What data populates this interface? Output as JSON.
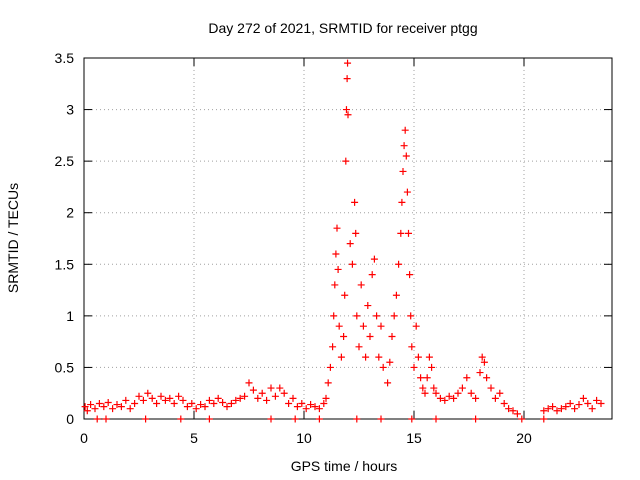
{
  "chart_data": {
    "type": "scatter",
    "title": "Day 272 of 2021, SRMTID for receiver ptgg",
    "xlabel": "GPS time / hours",
    "ylabel": "SRMTID / TECUs",
    "xlim": [
      0,
      24
    ],
    "ylim": [
      0,
      3.5
    ],
    "x_ticks": [
      0,
      5,
      10,
      15,
      20
    ],
    "y_ticks": [
      0,
      0.5,
      1,
      1.5,
      2,
      2.5,
      3,
      3.5
    ],
    "x_tick_labels": [
      "0",
      "5",
      "10",
      "15",
      "20"
    ],
    "y_tick_labels": [
      "0",
      "0.5",
      "1",
      "1.5",
      "2",
      "2.5",
      "3",
      "3.5"
    ],
    "grid": true,
    "marker": "+",
    "marker_color": "#ff0000",
    "series": [
      {
        "name": "SRMTID",
        "points": [
          [
            0.05,
            0.12
          ],
          [
            0.15,
            0.08
          ],
          [
            0.3,
            0.14
          ],
          [
            0.5,
            0.1
          ],
          [
            0.7,
            0.15
          ],
          [
            0.9,
            0.12
          ],
          [
            1.1,
            0.16
          ],
          [
            1.3,
            0.1
          ],
          [
            1.5,
            0.14
          ],
          [
            1.7,
            0.12
          ],
          [
            1.9,
            0.18
          ],
          [
            2.1,
            0.1
          ],
          [
            2.3,
            0.15
          ],
          [
            2.5,
            0.22
          ],
          [
            2.7,
            0.18
          ],
          [
            2.9,
            0.25
          ],
          [
            3.1,
            0.2
          ],
          [
            3.3,
            0.15
          ],
          [
            3.5,
            0.22
          ],
          [
            3.7,
            0.18
          ],
          [
            3.9,
            0.2
          ],
          [
            4.1,
            0.15
          ],
          [
            4.3,
            0.22
          ],
          [
            4.5,
            0.18
          ],
          [
            4.7,
            0.12
          ],
          [
            4.9,
            0.15
          ],
          [
            5.1,
            0.1
          ],
          [
            5.3,
            0.14
          ],
          [
            5.5,
            0.12
          ],
          [
            5.7,
            0.18
          ],
          [
            5.9,
            0.15
          ],
          [
            6.1,
            0.2
          ],
          [
            6.3,
            0.16
          ],
          [
            6.5,
            0.12
          ],
          [
            6.7,
            0.15
          ],
          [
            6.9,
            0.18
          ],
          [
            7.1,
            0.2
          ],
          [
            7.3,
            0.22
          ],
          [
            7.5,
            0.35
          ],
          [
            7.7,
            0.28
          ],
          [
            7.9,
            0.2
          ],
          [
            8.1,
            0.25
          ],
          [
            8.3,
            0.18
          ],
          [
            8.5,
            0.3
          ],
          [
            8.7,
            0.22
          ],
          [
            8.9,
            0.3
          ],
          [
            9.1,
            0.25
          ],
          [
            9.3,
            0.15
          ],
          [
            9.5,
            0.2
          ],
          [
            9.7,
            0.12
          ],
          [
            9.9,
            0.15
          ],
          [
            10.1,
            0.1
          ],
          [
            10.3,
            0.14
          ],
          [
            10.5,
            0.12
          ],
          [
            10.7,
            0.1
          ],
          [
            10.9,
            0.15
          ],
          [
            11.0,
            0.2
          ],
          [
            11.1,
            0.35
          ],
          [
            11.2,
            0.5
          ],
          [
            11.3,
            0.7
          ],
          [
            11.35,
            1.0
          ],
          [
            11.4,
            1.3
          ],
          [
            11.45,
            1.6
          ],
          [
            11.5,
            1.85
          ],
          [
            11.55,
            1.45
          ],
          [
            11.6,
            0.9
          ],
          [
            11.7,
            0.6
          ],
          [
            11.8,
            0.8
          ],
          [
            11.85,
            1.2
          ],
          [
            11.9,
            2.5
          ],
          [
            11.93,
            3.0
          ],
          [
            11.96,
            3.3
          ],
          [
            11.98,
            3.45
          ],
          [
            12.0,
            2.95
          ],
          [
            12.1,
            1.7
          ],
          [
            12.2,
            1.5
          ],
          [
            12.3,
            2.1
          ],
          [
            12.35,
            1.8
          ],
          [
            12.4,
            1.0
          ],
          [
            12.5,
            0.7
          ],
          [
            12.6,
            1.3
          ],
          [
            12.7,
            0.9
          ],
          [
            12.8,
            0.6
          ],
          [
            12.9,
            1.1
          ],
          [
            13.0,
            0.8
          ],
          [
            13.1,
            1.4
          ],
          [
            13.2,
            1.55
          ],
          [
            13.3,
            1.0
          ],
          [
            13.4,
            0.6
          ],
          [
            13.5,
            0.9
          ],
          [
            13.6,
            0.5
          ],
          [
            13.8,
            0.35
          ],
          [
            13.9,
            0.55
          ],
          [
            14.0,
            0.8
          ],
          [
            14.1,
            1.0
          ],
          [
            14.2,
            1.2
          ],
          [
            14.3,
            1.5
          ],
          [
            14.4,
            1.8
          ],
          [
            14.45,
            2.1
          ],
          [
            14.5,
            2.4
          ],
          [
            14.55,
            2.65
          ],
          [
            14.6,
            2.8
          ],
          [
            14.65,
            2.55
          ],
          [
            14.7,
            2.2
          ],
          [
            14.75,
            1.8
          ],
          [
            14.8,
            1.4
          ],
          [
            14.85,
            1.0
          ],
          [
            14.9,
            0.7
          ],
          [
            15.0,
            0.5
          ],
          [
            15.1,
            0.9
          ],
          [
            15.2,
            0.6
          ],
          [
            15.3,
            0.4
          ],
          [
            15.4,
            0.3
          ],
          [
            15.5,
            0.25
          ],
          [
            15.6,
            0.4
          ],
          [
            15.7,
            0.6
          ],
          [
            15.8,
            0.5
          ],
          [
            15.9,
            0.3
          ],
          [
            16.0,
            0.25
          ],
          [
            16.2,
            0.2
          ],
          [
            16.4,
            0.18
          ],
          [
            16.6,
            0.22
          ],
          [
            16.8,
            0.2
          ],
          [
            17.0,
            0.25
          ],
          [
            17.2,
            0.3
          ],
          [
            17.4,
            0.4
          ],
          [
            17.6,
            0.25
          ],
          [
            17.8,
            0.2
          ],
          [
            18.0,
            0.45
          ],
          [
            18.1,
            0.6
          ],
          [
            18.2,
            0.55
          ],
          [
            18.3,
            0.4
          ],
          [
            18.5,
            0.3
          ],
          [
            18.7,
            0.2
          ],
          [
            18.9,
            0.25
          ],
          [
            19.1,
            0.15
          ],
          [
            19.3,
            0.1
          ],
          [
            19.5,
            0.08
          ],
          [
            19.7,
            0.05
          ],
          [
            20.9,
            0.08
          ],
          [
            21.1,
            0.1
          ],
          [
            21.3,
            0.12
          ],
          [
            21.5,
            0.08
          ],
          [
            21.7,
            0.1
          ],
          [
            21.9,
            0.12
          ],
          [
            22.1,
            0.15
          ],
          [
            22.3,
            0.1
          ],
          [
            22.5,
            0.14
          ],
          [
            22.7,
            0.2
          ],
          [
            22.9,
            0.15
          ],
          [
            23.1,
            0.1
          ],
          [
            23.3,
            0.18
          ],
          [
            23.5,
            0.15
          ],
          [
            0.6,
            0
          ],
          [
            1.0,
            0
          ],
          [
            2.8,
            0
          ],
          [
            4.4,
            0
          ],
          [
            5.7,
            0
          ],
          [
            8.5,
            0
          ],
          [
            9.6,
            0
          ],
          [
            10.7,
            0
          ],
          [
            12.4,
            0
          ],
          [
            13.5,
            0
          ],
          [
            14.9,
            0
          ],
          [
            16.0,
            0
          ],
          [
            17.8,
            0
          ],
          [
            19.9,
            0
          ],
          [
            20.9,
            0
          ]
        ]
      }
    ]
  }
}
